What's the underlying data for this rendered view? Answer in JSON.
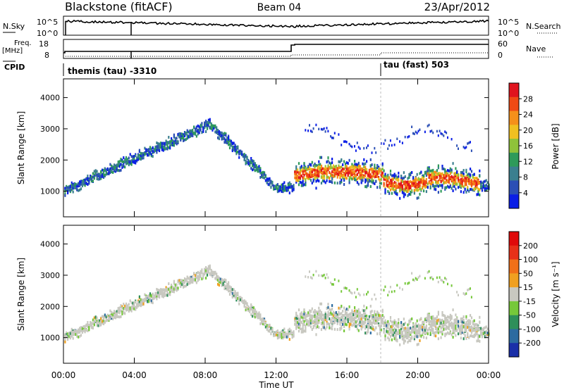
{
  "header": {
    "station": "Blackstone (fitACF)",
    "beam": "Beam 04",
    "date": "23/Apr/2012"
  },
  "top_panels": {
    "nsky_label": "N.Sky",
    "nsearch_label": "N.Search",
    "noise_ticks": [
      "10^5",
      "10^0"
    ],
    "freq_label_1": "Freq.",
    "freq_label_2": "[MHz]",
    "freq_ticks": [
      "18",
      "8"
    ],
    "nave_label": "Nave",
    "nave_ticks": [
      "60",
      "0"
    ],
    "cpid_label": "CPID",
    "cpid_1": "themis (tau) -3310",
    "cpid_2": "tau (fast) 503"
  },
  "chart_data": [
    {
      "type": "heatmap",
      "name": "power",
      "ylabel": "Slant Range [km]",
      "yticks": [
        1000,
        2000,
        3000,
        4000
      ],
      "ylim": [
        180,
        4600
      ],
      "xlim": [
        0,
        24
      ],
      "x_ticks_hours": [
        0,
        4,
        8,
        12,
        16,
        20,
        24
      ],
      "colorbar_label": "Power [dB]",
      "colorbar_ticks": [
        "28",
        "24",
        "20",
        "16",
        "12",
        "8",
        "4"
      ],
      "colors": [
        "#0a1ee6",
        "#2b4fb5",
        "#3b7f8f",
        "#2e9a5a",
        "#8fc23a",
        "#f0c020",
        "#f5901a",
        "#f04a14",
        "#e0141e"
      ]
    },
    {
      "type": "heatmap",
      "name": "velocity",
      "ylabel": "Slant Range [km]",
      "yticks": [
        1000,
        2000,
        3000,
        4000
      ],
      "ylim": [
        180,
        4600
      ],
      "xlim": [
        0,
        24
      ],
      "xlabel": "Time UT",
      "x_tick_labels": [
        "00:00",
        "04:00",
        "08:00",
        "12:00",
        "16:00",
        "20:00",
        "00:00"
      ],
      "colorbar_label": "Velocity [m s⁻¹]",
      "colorbar_ticks": [
        "200",
        "100",
        "50",
        "15",
        "-15",
        "-50",
        "-100",
        "-200"
      ],
      "colors": [
        "#1a2fa8",
        "#2c6ba0",
        "#2e8f5a",
        "#76c83a",
        "#c8c8c0",
        "#f0a020",
        "#f07018",
        "#e83018",
        "#e00a0a"
      ]
    }
  ]
}
